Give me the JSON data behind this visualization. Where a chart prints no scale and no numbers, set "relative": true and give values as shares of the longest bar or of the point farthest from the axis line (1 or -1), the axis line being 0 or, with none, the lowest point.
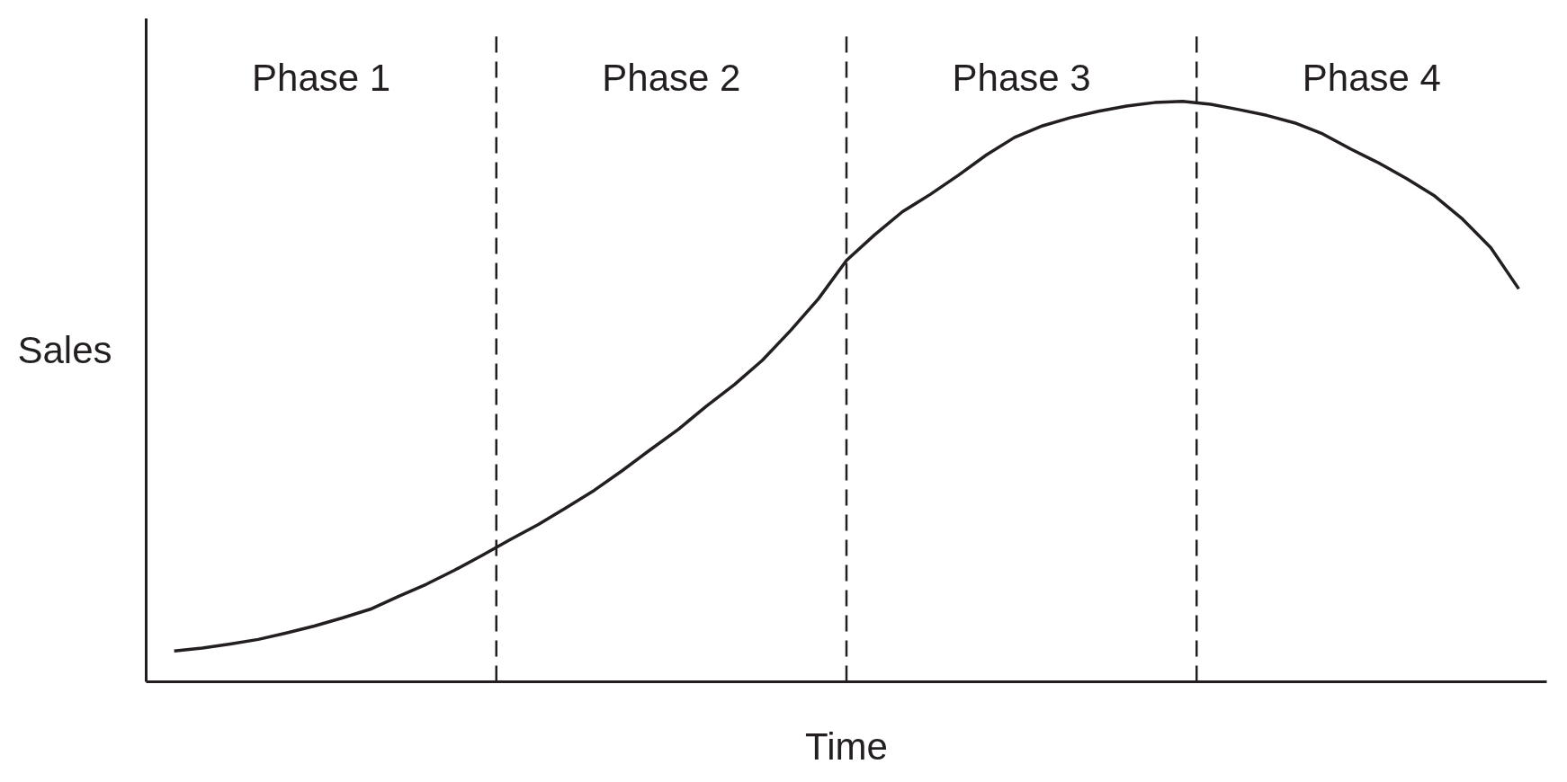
{
  "chart_data": {
    "type": "line",
    "xlabel": "Time",
    "ylabel": "Sales",
    "relative": true,
    "line_style": "solid",
    "categories": [
      null,
      null,
      null,
      null,
      null,
      null,
      null,
      null,
      null,
      null,
      null,
      null,
      null,
      null,
      null,
      null,
      null,
      null,
      null,
      null,
      null,
      null,
      null,
      null,
      null,
      null,
      null,
      null,
      null,
      null,
      null,
      null,
      null,
      null,
      null,
      null,
      null,
      null,
      null,
      null,
      null,
      null,
      null,
      null,
      null,
      null,
      null,
      null,
      null
    ],
    "series": [
      {
        "color": "#231f20",
        "values": [
          0.053,
          0.058,
          0.065,
          0.073,
          0.084,
          0.096,
          0.11,
          0.125,
          0.147,
          0.168,
          0.192,
          0.218,
          0.245,
          0.271,
          0.3,
          0.33,
          0.364,
          0.4,
          0.435,
          0.475,
          0.512,
          0.554,
          0.605,
          0.66,
          0.726,
          0.77,
          0.81,
          0.84,
          0.873,
          0.908,
          0.938,
          0.958,
          0.972,
          0.983,
          0.992,
          0.998,
          1.0,
          0.995,
          0.986,
          0.976,
          0.963,
          0.944,
          0.918,
          0.894,
          0.867,
          0.837,
          0.797,
          0.748,
          0.677
        ]
      }
    ],
    "annotations": [
      "Phase 1",
      "Phase 2",
      "Phase 3",
      "Phase 4"
    ]
  }
}
